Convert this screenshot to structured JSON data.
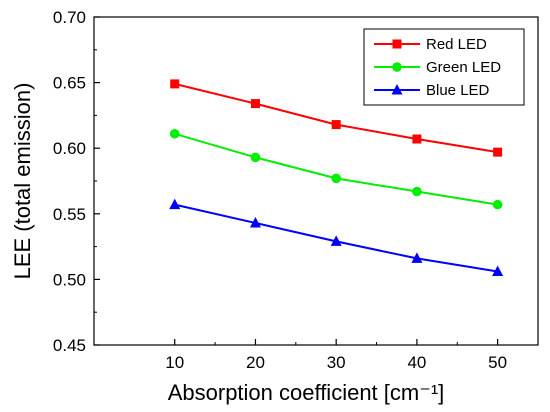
{
  "chart_data": {
    "type": "line",
    "title": "",
    "xlabel": "Absorption coefficient [cm⁻¹]",
    "ylabel": "LEE (total emission)",
    "xlim": [
      0,
      55
    ],
    "ylim": [
      0.45,
      0.7
    ],
    "x_ticks": [
      10,
      20,
      30,
      40,
      50
    ],
    "y_ticks": [
      0.45,
      0.5,
      0.55,
      0.6,
      0.65,
      0.7
    ],
    "x_tick_labels": [
      "10",
      "20",
      "30",
      "40",
      "50"
    ],
    "y_tick_labels": [
      "0.45",
      "0.50",
      "0.55",
      "0.60",
      "0.65",
      "0.70"
    ],
    "grid": false,
    "legend_position": "top-right",
    "x": [
      10,
      20,
      30,
      40,
      50
    ],
    "series": [
      {
        "name": "Red LED",
        "color": "#ff0000",
        "marker": "square",
        "values": [
          0.649,
          0.634,
          0.618,
          0.607,
          0.597
        ]
      },
      {
        "name": "Green LED",
        "color": "#00ee00",
        "marker": "circle",
        "values": [
          0.611,
          0.593,
          0.577,
          0.567,
          0.557
        ]
      },
      {
        "name": "Blue LED",
        "color": "#0000ff",
        "marker": "triangle",
        "values": [
          0.557,
          0.543,
          0.529,
          0.516,
          0.506
        ]
      }
    ]
  }
}
